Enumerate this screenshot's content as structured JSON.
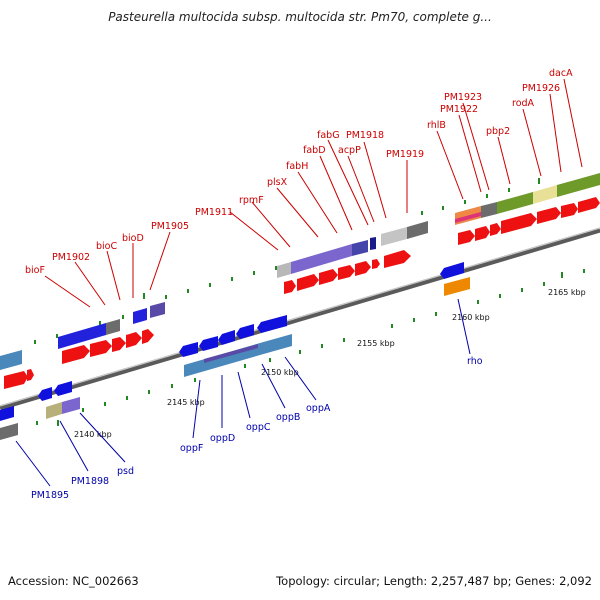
{
  "title": "Pasteurella multocida subsp. multocida str. Pm70, complete g...",
  "footer": {
    "accession": "Accession: NC_002663",
    "summary": "Topology: circular; Length: 2,257,487 bp; Genes: 2,092"
  },
  "colors": {
    "forward_gene": "#ee1111",
    "reverse_gene": "#1111dd",
    "forward_label": "#cc0000",
    "reverse_label": "#0000aa",
    "backbone": "#999999",
    "tick": "#228822"
  },
  "ruler_labels": [
    "2140 kbp",
    "2145 kbp",
    "2150 kbp",
    "2155 kbp",
    "2160 kbp",
    "2165 kbp"
  ],
  "forward_genes": [
    "bioF",
    "PM1902",
    "bioC",
    "bioD",
    "PM1905",
    "PM1911",
    "rpmF",
    "plsX",
    "fabH",
    "fabD",
    "fabG",
    "acpP",
    "PM1918",
    "PM1919",
    "rhlB",
    "PM1922",
    "PM1923",
    "pbp2",
    "rodA",
    "PM1926",
    "dacA"
  ],
  "reverse_genes": [
    "PM1895",
    "PM1898",
    "psd",
    "oppF",
    "oppD",
    "oppC",
    "oppB",
    "oppA",
    "rho"
  ]
}
